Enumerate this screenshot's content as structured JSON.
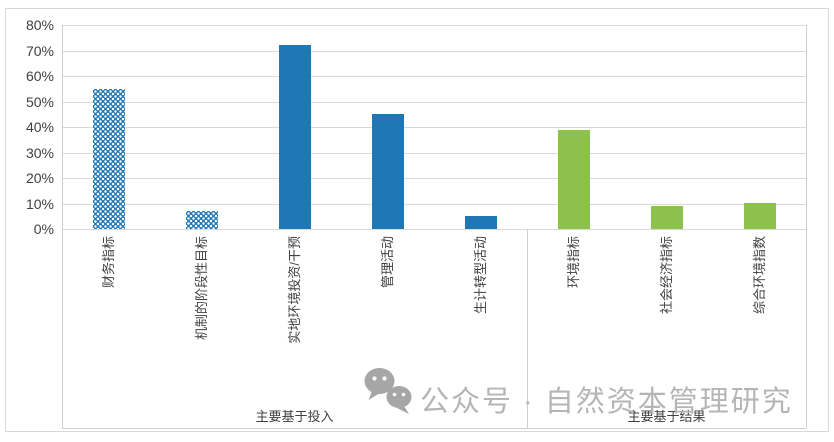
{
  "chart_data": {
    "type": "bar",
    "title": "",
    "xlabel": "",
    "ylabel": "",
    "categories": [
      "财务指标",
      "机制的阶段性目标",
      "实地环境投资/干预",
      "管理活动",
      "生计转型活动",
      "环境指标",
      "社会经济指标",
      "综合环境指数"
    ],
    "values": [
      55,
      7,
      72,
      45,
      5,
      39,
      9,
      10
    ],
    "unit": "%",
    "bar_styles": [
      "dotted-blue",
      "dotted-blue",
      "solid-blue",
      "solid-blue",
      "solid-blue",
      "solid-green",
      "solid-green",
      "solid-green"
    ],
    "groups": [
      {
        "label": "主要基于投入",
        "from": 0,
        "to": 4
      },
      {
        "label": "主要基于结果",
        "from": 5,
        "to": 7
      }
    ],
    "ylim": [
      0,
      80
    ],
    "ytick_step": 10,
    "ytick_labels": [
      "0%",
      "10%",
      "20%",
      "30%",
      "40%",
      "50%",
      "60%",
      "70%",
      "80%"
    ],
    "grid": true,
    "legend": false,
    "colors": {
      "blue": "#1f77b4",
      "green": "#8cc14e",
      "gridline": "#d9d9d9",
      "axis_text": "#404040"
    }
  },
  "watermark": {
    "icon": "wechat-icon",
    "text": "公众号 · 自然资本管理研究",
    "color": "#b5b5b5"
  }
}
